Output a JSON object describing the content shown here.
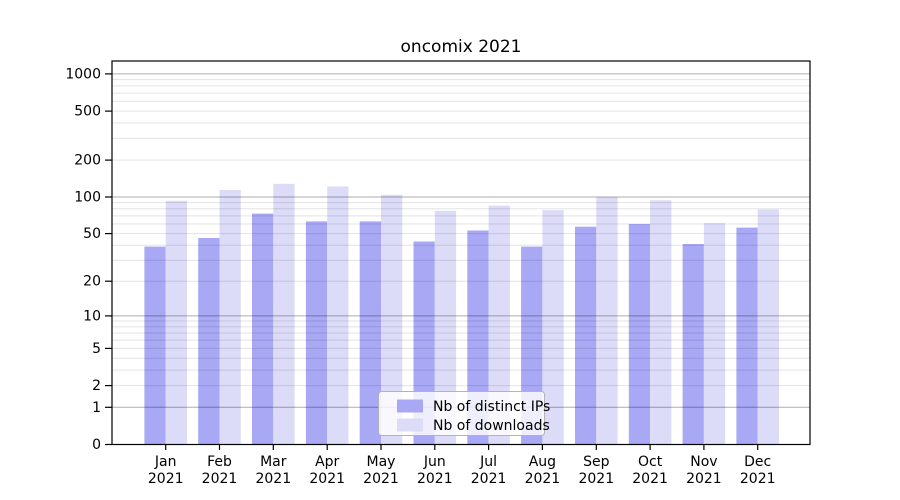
{
  "chart_data": {
    "type": "bar",
    "title": "oncomix 2021",
    "categories": [
      "Jan",
      "Feb",
      "Mar",
      "Apr",
      "May",
      "Jun",
      "Jul",
      "Aug",
      "Sep",
      "Oct",
      "Nov",
      "Dec"
    ],
    "year": "2021",
    "series": [
      {
        "name": "Nb of distinct IPs",
        "color": "#a8a8f5",
        "values": [
          39,
          46,
          73,
          63,
          63,
          43,
          53,
          39,
          57,
          60,
          41,
          56
        ]
      },
      {
        "name": "Nb of downloads",
        "color": "#dcdcf8",
        "values": [
          93,
          114,
          128,
          122,
          104,
          77,
          85,
          78,
          100,
          94,
          61,
          79
        ]
      }
    ],
    "y_axis_ticks": [
      0,
      1,
      2,
      5,
      10,
      20,
      50,
      100,
      200,
      500,
      1000
    ],
    "y_scale": "log10(1+y)",
    "ylim": [
      0,
      1260
    ],
    "grid": "both",
    "legend_position": "bottom-center",
    "colors": {
      "frame": "#000000",
      "major_grid": "#adadad",
      "minor_grid": "#e3e3e3",
      "legend_border": "#b3b3b3",
      "legend_background": "#ffffff",
      "text": "#000000"
    }
  }
}
